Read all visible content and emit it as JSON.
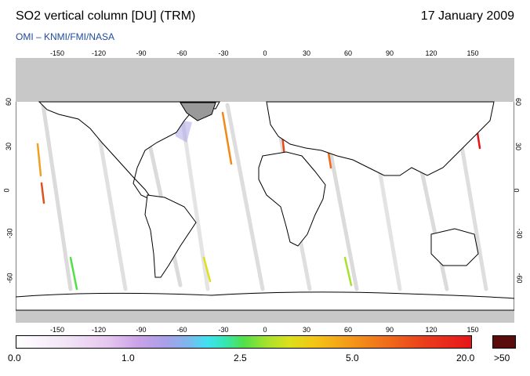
{
  "header": {
    "title": "SO2 vertical column [DU] (TRM)",
    "date": "17 January 2009",
    "credit": "OMI  –  KNMI/FMI/NASA"
  },
  "map": {
    "lon_ticks": [
      "-150",
      "-120",
      "-90",
      "-60",
      "-30",
      "0",
      "30",
      "60",
      "90",
      "120",
      "150"
    ],
    "lat_ticks": [
      "60",
      "30",
      "0",
      "-30",
      "-60"
    ],
    "land_mask_color": "#c8c8c8",
    "coastline_color": "#000000"
  },
  "colorbar": {
    "labels": [
      "0.0",
      "1.0",
      "2.5",
      "5.0",
      "20.0"
    ],
    "over_label": ">50",
    "over_color": "#5a0c0c"
  }
}
